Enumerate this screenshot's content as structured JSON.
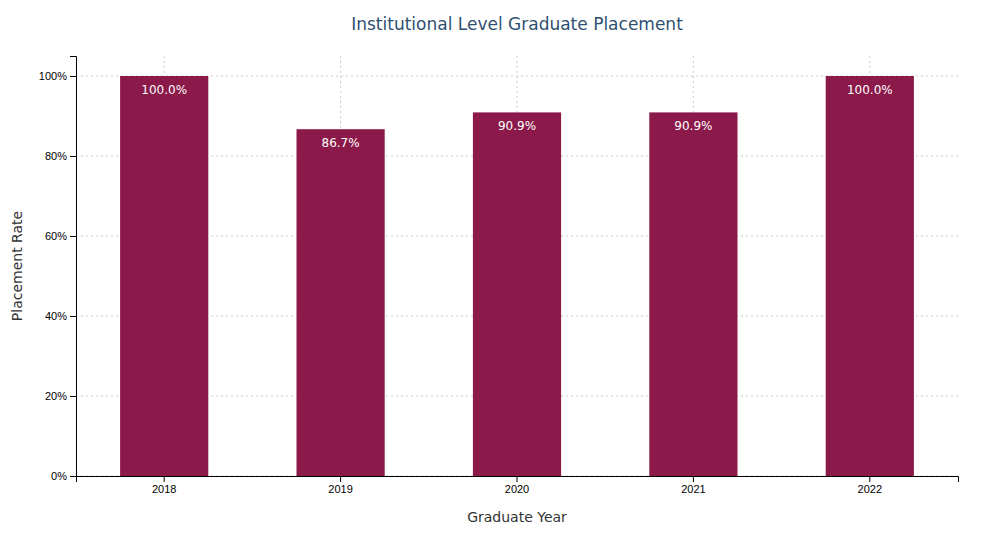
{
  "chart_data": {
    "type": "bar",
    "title": "Institutional Level Graduate Placement",
    "xlabel": "Graduate Year",
    "ylabel": "Placement Rate",
    "categories": [
      "2018",
      "2019",
      "2020",
      "2021",
      "2022"
    ],
    "values": [
      100.0,
      86.7,
      90.9,
      90.9,
      100.0
    ],
    "value_labels": [
      "100.0%",
      "86.7%",
      "90.9%",
      "90.9%",
      "100.0%"
    ],
    "data_labels": true,
    "color": "#8B1A4A",
    "ylim": [
      0,
      105
    ],
    "yticks": [
      {
        "value": 0,
        "label": "0%"
      },
      {
        "value": 20,
        "label": "20%"
      },
      {
        "value": 40,
        "label": "40%"
      },
      {
        "value": 60,
        "label": "60%"
      },
      {
        "value": 80,
        "label": "80%"
      },
      {
        "value": 100,
        "label": "100%"
      }
    ],
    "grid": true
  }
}
